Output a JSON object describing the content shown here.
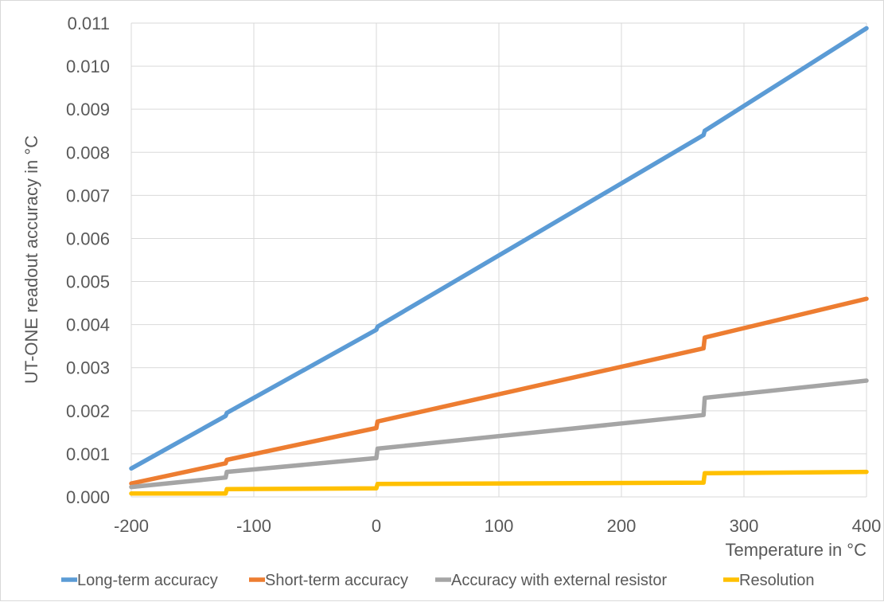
{
  "chart_data": {
    "type": "line",
    "xlabel": "Temperature in °C",
    "ylabel": "UT-ONE readout accuracy in °C",
    "xlim": [
      -200,
      400
    ],
    "ylim": [
      0,
      0.011
    ],
    "x_ticks": [
      "-200",
      "-100",
      "0",
      "100",
      "200",
      "300",
      "400"
    ],
    "y_ticks": [
      "0.000",
      "0.001",
      "0.002",
      "0.003",
      "0.004",
      "0.005",
      "0.006",
      "0.007",
      "0.008",
      "0.009",
      "0.010",
      "0.011"
    ],
    "grid": true,
    "legend_position": "bottom",
    "series": [
      {
        "name": "Long-term accuracy",
        "color": "#5b9bd5",
        "points": [
          [
            -200,
            0.00066
          ],
          [
            -123,
            0.00188
          ],
          [
            -122,
            0.00195
          ],
          [
            0,
            0.00388
          ],
          [
            1,
            0.00395
          ],
          [
            267,
            0.0084
          ],
          [
            268,
            0.0085
          ],
          [
            400,
            0.01088
          ]
        ]
      },
      {
        "name": "Short-term accuracy",
        "color": "#ed7d31",
        "points": [
          [
            -200,
            0.00031
          ],
          [
            -123,
            0.00078
          ],
          [
            -122,
            0.00086
          ],
          [
            0,
            0.0016
          ],
          [
            1,
            0.00175
          ],
          [
            267,
            0.00345
          ],
          [
            268,
            0.0037
          ],
          [
            400,
            0.0046
          ]
        ]
      },
      {
        "name": "Accuracy with external resistor",
        "color": "#a5a5a5",
        "points": [
          [
            -200,
            0.00023
          ],
          [
            -123,
            0.00045
          ],
          [
            -122,
            0.00058
          ],
          [
            0,
            0.0009
          ],
          [
            1,
            0.00112
          ],
          [
            267,
            0.0019
          ],
          [
            268,
            0.0023
          ],
          [
            400,
            0.0027
          ]
        ]
      },
      {
        "name": "Resolution",
        "color": "#ffc000",
        "points": [
          [
            -200,
            8e-05
          ],
          [
            -123,
            8e-05
          ],
          [
            -122,
            0.00018
          ],
          [
            0,
            0.0002
          ],
          [
            1,
            0.0003
          ],
          [
            267,
            0.00033
          ],
          [
            268,
            0.00055
          ],
          [
            400,
            0.00058
          ]
        ]
      }
    ]
  }
}
